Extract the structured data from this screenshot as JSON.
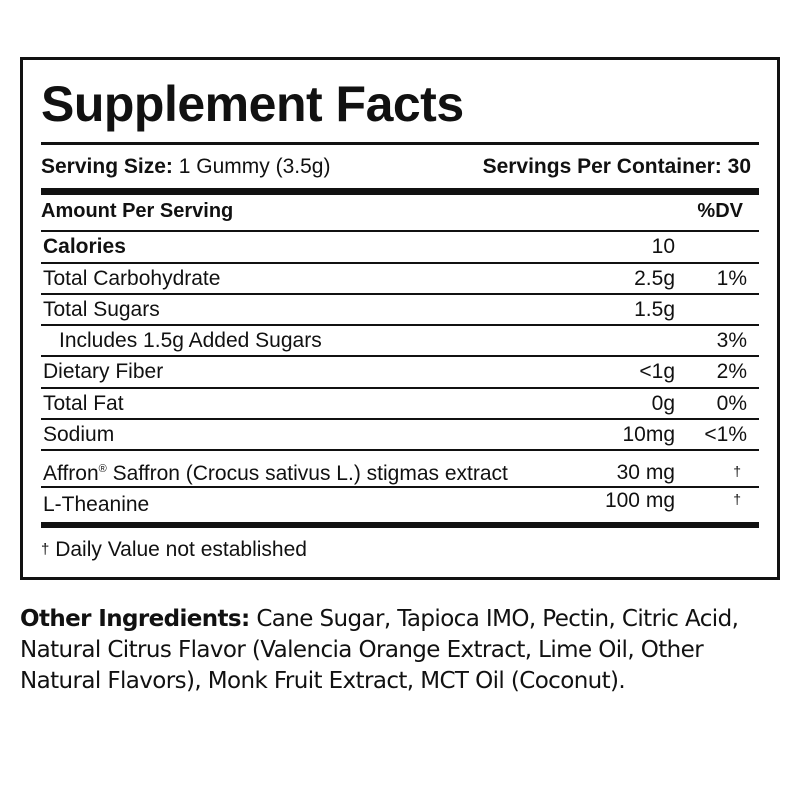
{
  "panel": {
    "title": "Supplement Facts",
    "serving_size_label": "Serving Size:",
    "serving_size_value": "1 Gummy (3.5g)",
    "servings_per_container_label": "Servings Per Container:",
    "servings_per_container_value": "30",
    "amount_header": "Amount Per Serving",
    "dv_header": "%DV",
    "rows": [
      {
        "label": "Calories",
        "amount": "10",
        "dv": ""
      },
      {
        "label": "Total Carbohydrate",
        "amount": "2.5g",
        "dv": "1%"
      },
      {
        "label": "Total Sugars",
        "amount": "1.5g",
        "dv": ""
      },
      {
        "label": "Includes 1.5g Added Sugars",
        "amount": "",
        "dv": "3%"
      },
      {
        "label": "Dietary Fiber",
        "amount": "<1g",
        "dv": "2%"
      },
      {
        "label": "Total Fat",
        "amount": "0g",
        "dv": "0%"
      },
      {
        "label": "Sodium",
        "amount": "10mg",
        "dv": "<1%"
      },
      {
        "label_brand": "Affron",
        "label_mark": "®",
        "label_rest": " Saffron (Crocus sativus L.) stigmas extract",
        "amount": "30 mg",
        "dv": "†"
      },
      {
        "label": "L-Theanine",
        "amount": "100 mg",
        "dv": "†"
      }
    ],
    "footnote_symbol": "†",
    "footnote_text": "Daily Value not established"
  },
  "other_ingredients": {
    "label": "Other Ingredients:",
    "text": " Cane Sugar, Tapioca IMO, Pectin, Citric Acid, Natural Citrus Flavor (Valencia Orange Extract, Lime Oil, Other Natural Flavors), Monk Fruit Extract, MCT Oil (Coconut)."
  }
}
